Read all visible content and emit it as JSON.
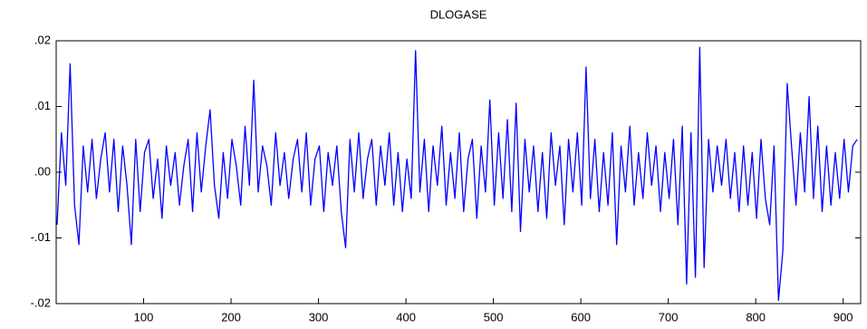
{
  "chart_data": {
    "type": "line",
    "title": "DLOGASE",
    "x": [
      1,
      6,
      11,
      16,
      21,
      26,
      31,
      36,
      41,
      46,
      51,
      56,
      61,
      66,
      71,
      76,
      81,
      86,
      91,
      96,
      101,
      106,
      111,
      116,
      121,
      126,
      131,
      136,
      141,
      146,
      151,
      156,
      161,
      166,
      171,
      176,
      181,
      186,
      191,
      196,
      201,
      206,
      211,
      216,
      221,
      226,
      231,
      236,
      241,
      246,
      251,
      256,
      261,
      266,
      271,
      276,
      281,
      286,
      291,
      296,
      301,
      306,
      311,
      316,
      321,
      326,
      331,
      336,
      341,
      346,
      351,
      356,
      361,
      366,
      371,
      376,
      381,
      386,
      391,
      396,
      401,
      406,
      411,
      416,
      421,
      426,
      431,
      436,
      441,
      446,
      451,
      456,
      461,
      466,
      471,
      476,
      481,
      486,
      491,
      496,
      501,
      506,
      511,
      516,
      521,
      526,
      531,
      536,
      541,
      546,
      551,
      556,
      561,
      566,
      571,
      576,
      581,
      586,
      591,
      596,
      601,
      606,
      611,
      616,
      621,
      626,
      631,
      636,
      641,
      646,
      651,
      656,
      661,
      666,
      671,
      676,
      681,
      686,
      691,
      696,
      701,
      706,
      711,
      716,
      721,
      726,
      731,
      736,
      741,
      746,
      751,
      756,
      761,
      766,
      771,
      776,
      781,
      786,
      791,
      796,
      801,
      806,
      811,
      816,
      821,
      826,
      831,
      836,
      841,
      846,
      851,
      856,
      861,
      866,
      871,
      876,
      881,
      886,
      891,
      896,
      901,
      906,
      911,
      916
    ],
    "series": [
      {
        "name": "DLOGASE",
        "color": "#0000ff",
        "values": [
          -0.008,
          0.006,
          -0.002,
          0.0165,
          -0.005,
          -0.011,
          0.004,
          -0.003,
          0.005,
          -0.004,
          0.002,
          0.006,
          -0.003,
          0.005,
          -0.006,
          0.004,
          -0.002,
          -0.011,
          0.005,
          -0.006,
          0.003,
          0.005,
          -0.004,
          0.002,
          -0.007,
          0.004,
          -0.002,
          0.003,
          -0.005,
          0.001,
          0.005,
          -0.006,
          0.006,
          -0.003,
          0.004,
          0.0095,
          -0.002,
          -0.007,
          0.003,
          -0.004,
          0.005,
          0.001,
          -0.005,
          0.007,
          -0.002,
          0.014,
          -0.003,
          0.004,
          0.001,
          -0.005,
          0.006,
          -0.002,
          0.003,
          -0.004,
          0.002,
          0.005,
          -0.003,
          0.006,
          -0.005,
          0.002,
          0.004,
          -0.006,
          0.003,
          -0.002,
          0.004,
          -0.006,
          -0.0115,
          0.005,
          -0.003,
          0.006,
          -0.004,
          0.002,
          0.005,
          -0.005,
          0.004,
          -0.002,
          0.006,
          -0.005,
          0.003,
          -0.006,
          0.002,
          -0.004,
          0.0185,
          -0.003,
          0.005,
          -0.006,
          0.004,
          -0.002,
          0.007,
          -0.005,
          0.003,
          -0.004,
          0.006,
          -0.006,
          0.002,
          0.005,
          -0.007,
          0.004,
          -0.003,
          0.011,
          -0.005,
          0.006,
          -0.004,
          0.008,
          -0.006,
          0.0105,
          -0.009,
          0.005,
          -0.003,
          0.004,
          -0.006,
          0.003,
          -0.007,
          0.006,
          -0.002,
          0.004,
          -0.008,
          0.005,
          -0.003,
          0.006,
          -0.005,
          0.016,
          -0.004,
          0.005,
          -0.006,
          0.003,
          -0.005,
          0.006,
          -0.011,
          0.004,
          -0.003,
          0.007,
          -0.005,
          0.003,
          -0.004,
          0.006,
          -0.002,
          0.004,
          -0.006,
          0.003,
          -0.004,
          0.005,
          -0.008,
          0.007,
          -0.017,
          0.006,
          -0.016,
          0.019,
          -0.0145,
          0.005,
          -0.003,
          0.004,
          -0.002,
          0.005,
          -0.004,
          0.003,
          -0.006,
          0.004,
          -0.005,
          0.003,
          -0.007,
          0.005,
          -0.004,
          -0.008,
          0.004,
          -0.0195,
          -0.012,
          0.0135,
          0.004,
          -0.005,
          0.006,
          -0.003,
          0.0115,
          -0.004,
          0.007,
          -0.006,
          0.004,
          -0.005,
          0.003,
          -0.004,
          0.005,
          -0.003,
          0.004,
          0.005
        ]
      }
    ],
    "xlim": [
      0,
      920
    ],
    "xticks": [
      100,
      200,
      300,
      400,
      500,
      600,
      700,
      800,
      900
    ],
    "ylim": [
      -0.02,
      0.02
    ],
    "yticks": [
      {
        "value": -0.02,
        "label": "-.02"
      },
      {
        "value": -0.01,
        "label": "-.01"
      },
      {
        "value": 0,
        "label": ".00"
      },
      {
        "value": 0.01,
        "label": ".01"
      },
      {
        "value": 0.02,
        "label": ".02"
      }
    ],
    "grid": false
  }
}
